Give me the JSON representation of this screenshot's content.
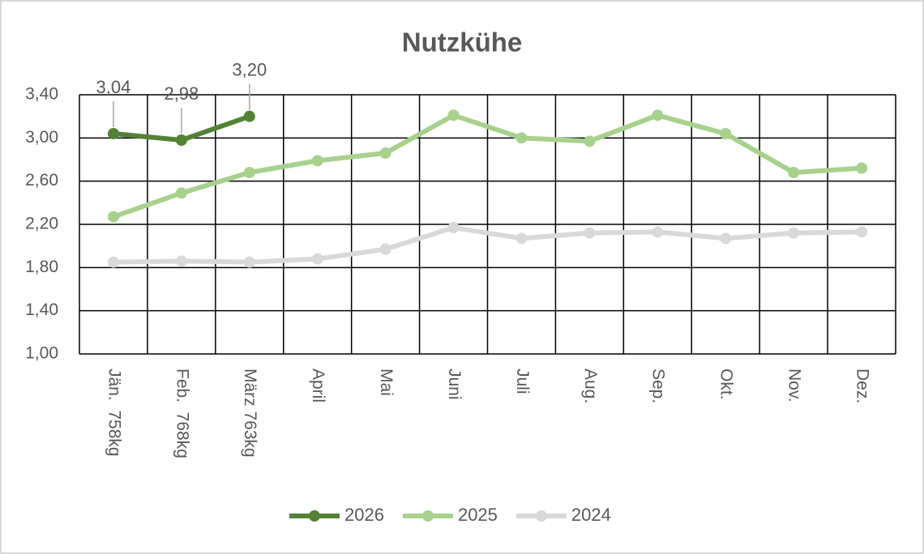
{
  "chart_data": {
    "type": "line",
    "title": "Nutzkühe",
    "categories": [
      "Jän.  758kg",
      "Feb.  768kg",
      "März 763kg",
      "April",
      "Mai",
      "Juni",
      "Juli",
      "Aug.",
      "Sep.",
      "Okt.",
      "Nov.",
      "Dez."
    ],
    "series": [
      {
        "name": "2026",
        "color": "#548235",
        "values": [
          3.04,
          2.98,
          3.2,
          null,
          null,
          null,
          null,
          null,
          null,
          null,
          null,
          null
        ],
        "value_labels": [
          "3,04",
          "2,98",
          "3,20",
          null,
          null,
          null,
          null,
          null,
          null,
          null,
          null,
          null
        ]
      },
      {
        "name": "2025",
        "color": "#a9d18e",
        "values": [
          2.27,
          2.49,
          2.68,
          2.79,
          2.86,
          3.21,
          3.0,
          2.97,
          3.21,
          3.04,
          2.68,
          2.72
        ]
      },
      {
        "name": "2024",
        "color": "#d9d9d9",
        "values": [
          1.85,
          1.86,
          1.85,
          1.88,
          1.97,
          2.17,
          2.07,
          2.12,
          2.13,
          2.07,
          2.12,
          2.13
        ]
      }
    ],
    "ylim": [
      1.0,
      3.4
    ],
    "yticks": [
      {
        "value": 1.0,
        "label": "1,00"
      },
      {
        "value": 1.4,
        "label": "1,40"
      },
      {
        "value": 1.8,
        "label": "1,80"
      },
      {
        "value": 2.2,
        "label": "2,20"
      },
      {
        "value": 2.6,
        "label": "2,60"
      },
      {
        "value": 3.0,
        "label": "3,00"
      },
      {
        "value": 3.4,
        "label": "3,40"
      }
    ],
    "grid": true,
    "legend": "bottom"
  }
}
